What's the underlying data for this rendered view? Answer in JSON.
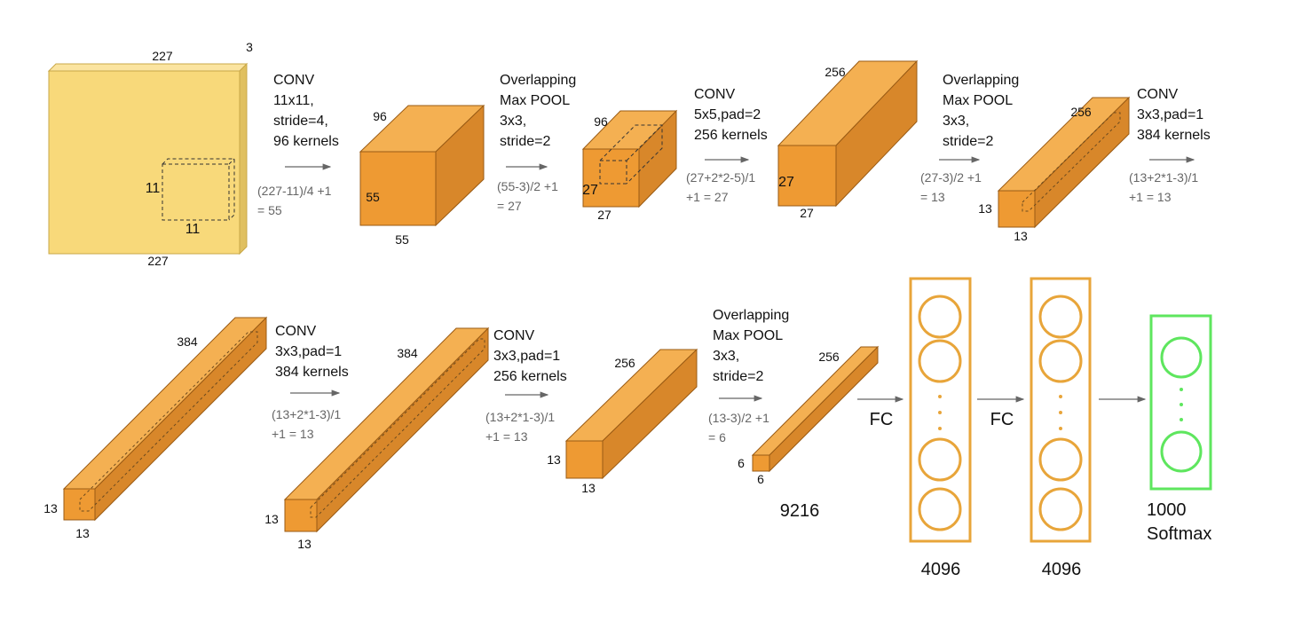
{
  "colors": {
    "input_front": "#F8D97A",
    "input_top": "#FBE4A0",
    "input_side": "#E0C060",
    "block_front": "#EE9A33",
    "block_top": "#F4B052",
    "block_side": "#D8872A",
    "fc_border": "#E8A53A",
    "softmax_border": "#5EE65E",
    "arrow": "#666666",
    "text": "#111111",
    "calc_text": "#666666"
  },
  "input": {
    "top": "227",
    "depth": "3",
    "bottom": "227",
    "kernel_h": "11",
    "kernel_w": "11"
  },
  "stages": [
    {
      "op": [
        "CONV",
        "11x11,",
        "stride=4,",
        "96 kernels"
      ],
      "calc": [
        "(227-11)/4 +1",
        "= 55"
      ]
    },
    {
      "op": [
        "Overlapping",
        "Max POOL",
        "3x3,",
        "stride=2"
      ],
      "calc": [
        "(55-3)/2 +1",
        "= 27"
      ]
    },
    {
      "op": [
        "CONV",
        "5x5,pad=2",
        "256 kernels"
      ],
      "calc": [
        "(27+2*2-5)/1",
        "+1  = 27"
      ]
    },
    {
      "op": [
        "Overlapping",
        "Max POOL",
        "3x3,",
        "stride=2"
      ],
      "calc": [
        "(27-3)/2 +1",
        "= 13"
      ]
    },
    {
      "op": [
        "CONV",
        "3x3,pad=1",
        "384 kernels"
      ],
      "calc": [
        "(13+2*1-3)/1",
        "+1  = 13"
      ]
    },
    {
      "op": [
        "CONV",
        "3x3,pad=1",
        "384 kernels"
      ],
      "calc": [
        "(13+2*1-3)/1",
        "+1  = 13"
      ]
    },
    {
      "op": [
        "CONV",
        "3x3,pad=1",
        "256 kernels"
      ],
      "calc": [
        "(13+2*1-3)/1",
        "+1  = 13"
      ]
    },
    {
      "op": [
        "Overlapping",
        "Max POOL",
        "3x3,",
        "stride=2"
      ],
      "calc": [
        "(13-3)/2 +1",
        "= 6"
      ]
    }
  ],
  "volumes": [
    {
      "depth": "96",
      "height": "55",
      "width": "55"
    },
    {
      "depth": "96",
      "height": "27",
      "width": "27"
    },
    {
      "depth": "256",
      "height": "27",
      "width": "27"
    },
    {
      "depth": "256",
      "height": "13",
      "width": "13"
    },
    {
      "depth": "384",
      "height": "13",
      "width": "13"
    },
    {
      "depth": "384",
      "height": "13",
      "width": "13"
    },
    {
      "depth": "256",
      "height": "13",
      "width": "13"
    },
    {
      "depth": "256",
      "height": "6",
      "width": "6"
    }
  ],
  "flatten": "9216",
  "fc_labels": [
    "FC",
    "FC"
  ],
  "fc_layers": [
    {
      "size": "4096"
    },
    {
      "size": "4096"
    }
  ],
  "output": {
    "count": "1000",
    "activation": "Softmax"
  }
}
